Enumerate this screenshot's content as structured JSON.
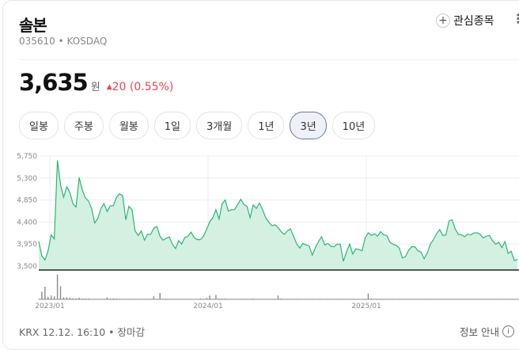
{
  "header": {
    "title": "솔본",
    "code": "035610",
    "market": "KOSDAQ",
    "watchlist_label": "관심종목"
  },
  "quote": {
    "price": "3,635",
    "unit": "원",
    "change": "20",
    "change_pct": "(0.55%)",
    "direction": "up",
    "up_color": "#f04452"
  },
  "tabs": [
    {
      "label": "일봉"
    },
    {
      "label": "주봉"
    },
    {
      "label": "월봉"
    },
    {
      "label": "1일"
    },
    {
      "label": "3개월"
    },
    {
      "label": "1년"
    },
    {
      "label": "3년",
      "selected": true
    },
    {
      "label": "10년"
    }
  ],
  "footer": {
    "status": "KRX 12.12. 16:10 • 장마감",
    "info_label": "정보 안내"
  },
  "chart_data": {
    "type": "area",
    "line_color": "#2bb673",
    "fill_color": "#d4f0e0",
    "ylim": [
      3500,
      5750
    ],
    "yticks": [
      "5,750",
      "5,300",
      "4,850",
      "4,400",
      "3,950",
      "3,500"
    ],
    "ytick_values": [
      5750,
      5300,
      4850,
      4400,
      3950,
      3500
    ],
    "xticks": [
      "2023/01",
      "2024/01",
      "2025/01"
    ],
    "grid": true,
    "prices": [
      4003,
      3705,
      3624,
      3813,
      4138,
      4057,
      5663,
      5166,
      4906,
      5122,
      5003,
      4776,
      4706,
      5312,
      5058,
      4895,
      4830,
      4679,
      4381,
      4473,
      4679,
      4776,
      4614,
      4733,
      4733,
      4906,
      4976,
      4939,
      4446,
      4722,
      4652,
      4219,
      4127,
      4219,
      4030,
      4149,
      4149,
      4273,
      4311,
      4111,
      4030,
      4068,
      4095,
      3949,
      3857,
      4019,
      3949,
      4084,
      4111,
      4192,
      4084,
      4041,
      4041,
      4111,
      4246,
      4408,
      4489,
      4652,
      4462,
      4776,
      4852,
      4625,
      4652,
      4652,
      4760,
      4868,
      4760,
      4722,
      4489,
      4749,
      4679,
      4787,
      4652,
      4489,
      4398,
      4327,
      4344,
      4289,
      4203,
      4149,
      4219,
      4262,
      4111,
      3949,
      3868,
      3965,
      3932,
      3911,
      3721,
      3878,
      4003,
      4100,
      3932,
      3965,
      3905,
      3895,
      3949,
      3949,
      3597,
      3786,
      3949,
      3748,
      3851,
      3840,
      3813,
      4073,
      4181,
      4127,
      4160,
      4111,
      4203,
      4138,
      4127,
      3986,
      3949,
      3922,
      3868,
      3667,
      3694,
      3824,
      3895,
      3895,
      3813,
      3786,
      3651,
      3770,
      3949,
      4041,
      4165,
      4246,
      4127,
      4138,
      4425,
      4446,
      4257,
      4149,
      4138,
      4100,
      4154,
      4138,
      4176,
      4181,
      4149,
      4073,
      4111,
      4127,
      4019,
      3949,
      3986,
      3878,
      4003,
      3759,
      3802,
      3613,
      3635
    ],
    "volume_relative": [
      2,
      30,
      50,
      10,
      15,
      12,
      98,
      52,
      8,
      8,
      6,
      4,
      4,
      6,
      3,
      3,
      3,
      2,
      2,
      2,
      2,
      2,
      8,
      3,
      3,
      3,
      2,
      2,
      2,
      2,
      2,
      2,
      2,
      2,
      2,
      2,
      2,
      12,
      2,
      25,
      2,
      2,
      0,
      0,
      0,
      0,
      0,
      0,
      0,
      0,
      0,
      0,
      3,
      2,
      5,
      15,
      2,
      17,
      3,
      3,
      3,
      2,
      2,
      2,
      2,
      2,
      2,
      2,
      2,
      3,
      2,
      2,
      2,
      2,
      2,
      2,
      2,
      15,
      3,
      2,
      2,
      2,
      0,
      2,
      2,
      0,
      0,
      2,
      2,
      0,
      2,
      2,
      0,
      2,
      0,
      0,
      2,
      2,
      2,
      0,
      0,
      2,
      2,
      0,
      2,
      2,
      23,
      3,
      2,
      0,
      2,
      2,
      0,
      2,
      2,
      0,
      2,
      2,
      2,
      2,
      0,
      0,
      2,
      2,
      2,
      2,
      2,
      2,
      2,
      0,
      0,
      0,
      0,
      0,
      0,
      0,
      0,
      0,
      0,
      0,
      0,
      0,
      0,
      0,
      0,
      0,
      0,
      2,
      2,
      0,
      0,
      0,
      2,
      0,
      2
    ]
  }
}
